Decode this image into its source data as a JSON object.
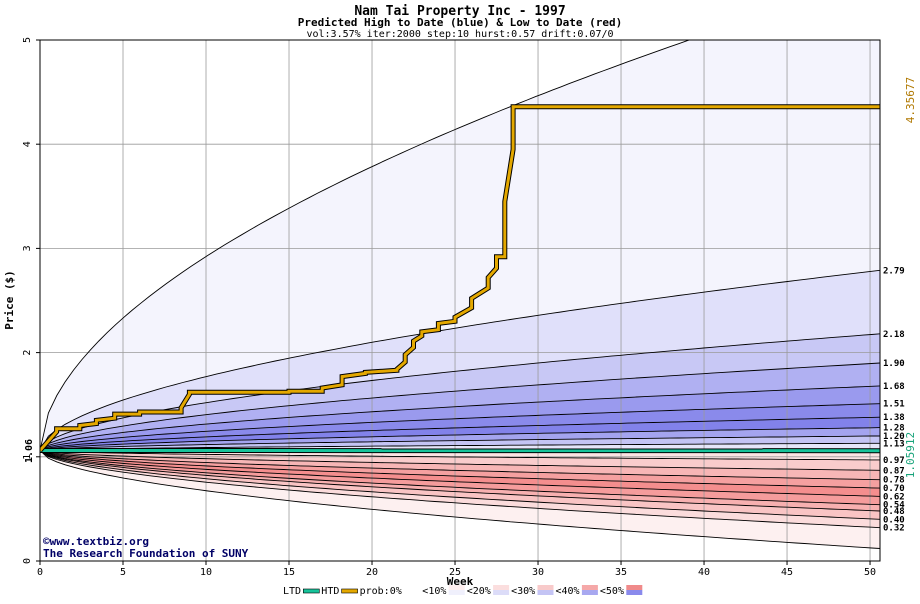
{
  "chart_data": {
    "type": "area",
    "title": "Nam Tai Property Inc - 1997",
    "subtitle": "Predicted High to Date (blue) &  Low to Date (red)",
    "params": "vol:3.57% iter:2000 step:10 hurst:0.57 drift:0.07/0",
    "xlabel": "Week",
    "ylabel": "Price ($)",
    "xlim": [
      0,
      50.6
    ],
    "ylim": [
      0,
      5
    ],
    "xticks": [
      0,
      5,
      10,
      15,
      20,
      25,
      30,
      35,
      40,
      45,
      50
    ],
    "yticks": [
      0,
      1,
      2,
      3,
      4,
      5
    ],
    "start_price": 1.06,
    "start_label": "1.06",
    "htd_final_label": "4.35677",
    "ltd_final_label": "1.05912",
    "right_labels": [
      "2.79",
      "2.18",
      "1.90",
      "1.68",
      "1.51",
      "1.38",
      "1.28",
      "1.20",
      "1.13",
      "0.97",
      "0.87",
      "0.78",
      "0.70",
      "0.62",
      "0.54",
      "0.48",
      "0.40",
      "0.32"
    ],
    "upper_bands": [
      {
        "end": 5.6,
        "fill": "#f4f4fd"
      },
      {
        "end": 2.79,
        "fill": "#e0e0fa"
      },
      {
        "end": 2.18,
        "fill": "#c8c8f5"
      },
      {
        "end": 1.9,
        "fill": "#b0b0f2"
      },
      {
        "end": 1.68,
        "fill": "#9a9aee"
      },
      {
        "end": 1.51,
        "fill": "#8a8aeb"
      },
      {
        "end": 1.38,
        "fill": "#8282ea"
      },
      {
        "end": 1.28,
        "fill": "#a4a4ef"
      },
      {
        "end": 1.2,
        "fill": "#c4c4f4"
      },
      {
        "end": 1.13,
        "fill": "#e6e6fa"
      }
    ],
    "lower_bands": [
      {
        "end": 0.12,
        "fill": "#fdf0f0"
      },
      {
        "end": 0.32,
        "fill": "#fbdcdc"
      },
      {
        "end": 0.4,
        "fill": "#f9c4c4"
      },
      {
        "end": 0.48,
        "fill": "#f7b0b0"
      },
      {
        "end": 0.54,
        "fill": "#f59c9c"
      },
      {
        "end": 0.62,
        "fill": "#f48e8e"
      },
      {
        "end": 0.7,
        "fill": "#f5a0a0"
      },
      {
        "end": 0.78,
        "fill": "#f7b6b6"
      },
      {
        "end": 0.87,
        "fill": "#f9cccc"
      },
      {
        "end": 0.97,
        "fill": "#fce4e4"
      }
    ],
    "htd_series": {
      "name": "HTD",
      "x": [
        0,
        1,
        1,
        2.4,
        2.4,
        3.4,
        3.4,
        4.5,
        4.5,
        6,
        6,
        8.5,
        8.5,
        9,
        9,
        15,
        15,
        17,
        17,
        18.2,
        18.2,
        19.6,
        19.6,
        21.5,
        21.5,
        22,
        22,
        22.5,
        22.5,
        23,
        23,
        24,
        24,
        25,
        25,
        26,
        26,
        27,
        27,
        27.5,
        27.5,
        28,
        28,
        28.5,
        28.5,
        50.6
      ],
      "y": [
        1.06,
        1.24,
        1.27,
        1.27,
        1.3,
        1.32,
        1.35,
        1.37,
        1.41,
        1.41,
        1.43,
        1.43,
        1.47,
        1.6,
        1.62,
        1.62,
        1.63,
        1.63,
        1.66,
        1.69,
        1.77,
        1.8,
        1.81,
        1.83,
        1.84,
        1.91,
        1.98,
        2.05,
        2.11,
        2.16,
        2.2,
        2.22,
        2.28,
        2.3,
        2.34,
        2.43,
        2.52,
        2.62,
        2.72,
        2.81,
        2.92,
        2.92,
        3.45,
        3.95,
        4.36,
        4.36
      ]
    },
    "ltd_series": {
      "name": "LTD",
      "x": [
        0,
        50.6
      ],
      "y": [
        1.06,
        1.059
      ]
    },
    "legend": {
      "items": [
        "LTD",
        "HTD",
        "prob:0%",
        "<10%",
        "<20%",
        "<30%",
        "<40%",
        "<50%"
      ],
      "ltd_color": "#17c39a",
      "htd_color": "#e4a800",
      "prob_swatches": [
        [
          "#ffffff",
          "#ffffff"
        ],
        [
          "#fdeeee",
          "#f0f0fc"
        ],
        [
          "#fbdede",
          "#dcdcf8"
        ],
        [
          "#f8caca",
          "#c4c4f4"
        ],
        [
          "#f5a8a8",
          "#a8a8f0"
        ],
        [
          "#f08a8a",
          "#8a8aec"
        ]
      ],
      "position": "bottom"
    },
    "watermark": {
      "line1": "©www.textbiz.org",
      "line2": "The Research Foundation of SUNY"
    },
    "colors": {
      "title": "#000000",
      "htd_label": "#b07800",
      "ltd_label": "#17a37a",
      "watermark": "#000066"
    },
    "grid": true
  }
}
